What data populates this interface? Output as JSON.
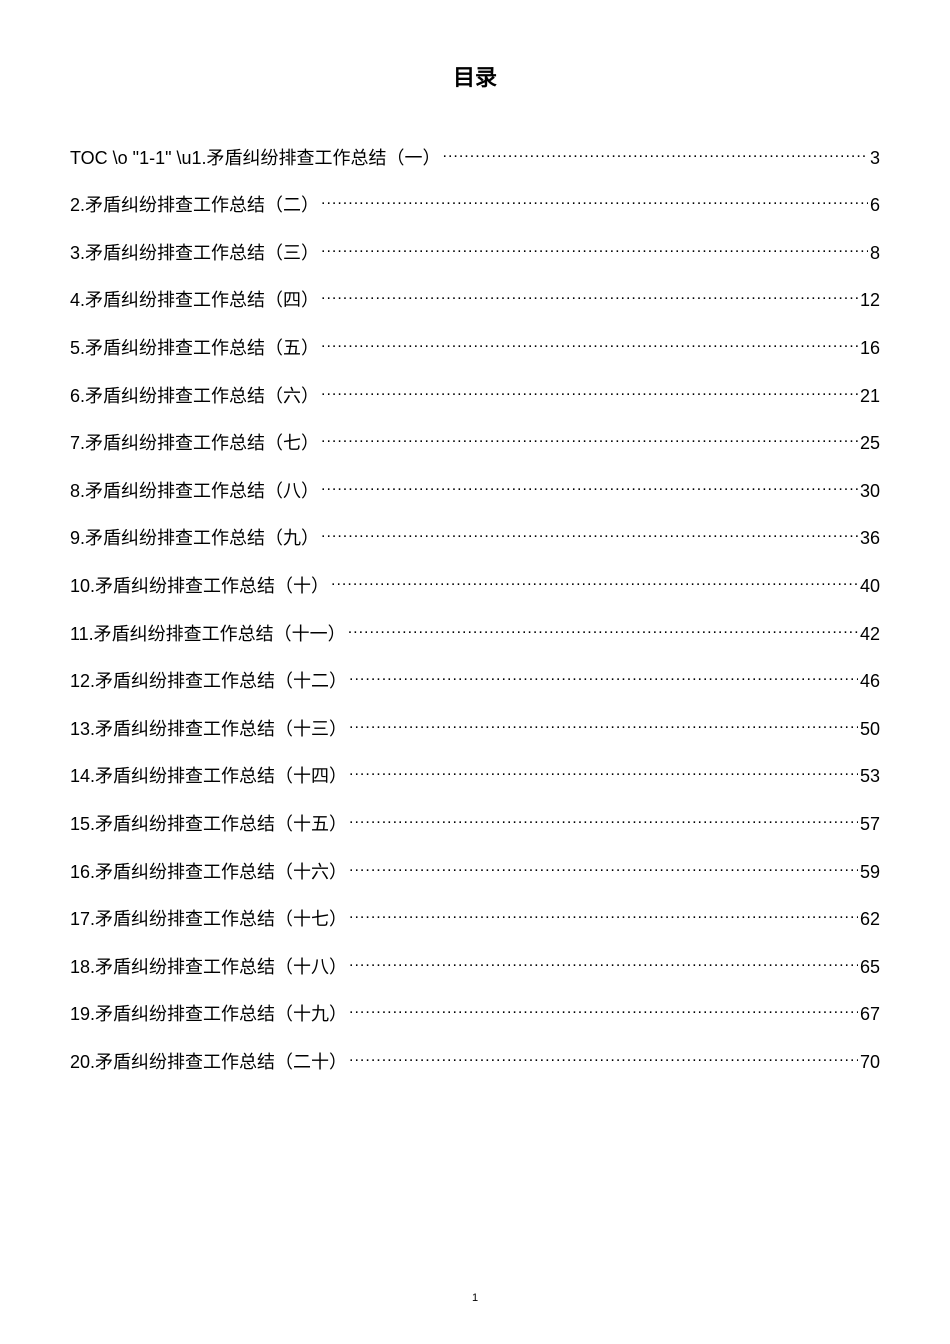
{
  "title": "目录",
  "toc_prefix": "TOC \\o \"1-1\" \\u",
  "page_number": "1",
  "font_family": "Microsoft YaHei",
  "title_fontsize": 22,
  "body_fontsize": 18,
  "text_color": "#000000",
  "background_color": "#ffffff",
  "entries": [
    {
      "label": "1.矛盾纠纷排查工作总结（一）",
      "page": "3"
    },
    {
      "label": "2.矛盾纠纷排查工作总结（二）",
      "page": "6"
    },
    {
      "label": "3.矛盾纠纷排查工作总结（三）",
      "page": "8"
    },
    {
      "label": "4.矛盾纠纷排查工作总结（四）",
      "page": "12"
    },
    {
      "label": "5.矛盾纠纷排查工作总结（五）",
      "page": "16"
    },
    {
      "label": "6.矛盾纠纷排查工作总结（六）",
      "page": "21"
    },
    {
      "label": "7.矛盾纠纷排查工作总结（七）",
      "page": "25"
    },
    {
      "label": "8.矛盾纠纷排查工作总结（八）",
      "page": "30"
    },
    {
      "label": "9.矛盾纠纷排查工作总结（九）",
      "page": "36"
    },
    {
      "label": "10.矛盾纠纷排查工作总结（十）",
      "page": "40"
    },
    {
      "label": "11.矛盾纠纷排查工作总结（十一）",
      "page": "42"
    },
    {
      "label": "12.矛盾纠纷排查工作总结（十二）",
      "page": "46"
    },
    {
      "label": "13.矛盾纠纷排查工作总结（十三）",
      "page": "50"
    },
    {
      "label": "14.矛盾纠纷排查工作总结（十四）",
      "page": "53"
    },
    {
      "label": "15.矛盾纠纷排查工作总结（十五）",
      "page": "57"
    },
    {
      "label": "16.矛盾纠纷排查工作总结（十六）",
      "page": "59"
    },
    {
      "label": "17.矛盾纠纷排查工作总结（十七）",
      "page": "62"
    },
    {
      "label": "18.矛盾纠纷排查工作总结（十八）",
      "page": "65"
    },
    {
      "label": "19.矛盾纠纷排查工作总结（十九）",
      "page": "67"
    },
    {
      "label": "20.矛盾纠纷排查工作总结（二十）",
      "page": "70"
    }
  ]
}
